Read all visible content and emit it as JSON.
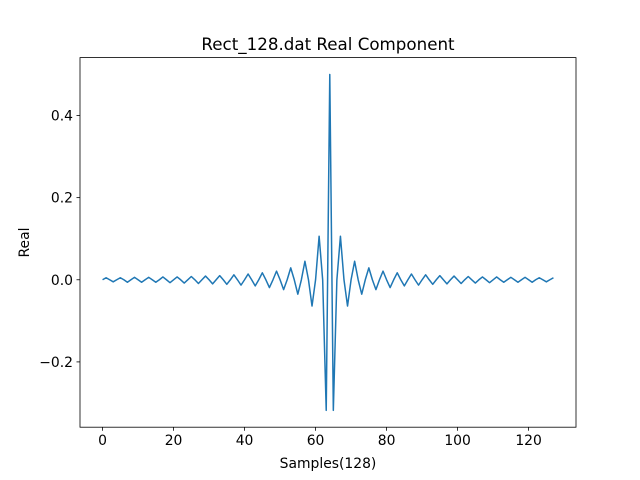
{
  "chart_data": {
    "type": "line",
    "title": "Rect_128.dat Real Component",
    "xlabel": "Samples(128)",
    "ylabel": "Real",
    "x": [
      0,
      1,
      2,
      3,
      4,
      5,
      6,
      7,
      8,
      9,
      10,
      11,
      12,
      13,
      14,
      15,
      16,
      17,
      18,
      19,
      20,
      21,
      22,
      23,
      24,
      25,
      26,
      27,
      28,
      29,
      30,
      31,
      32,
      33,
      34,
      35,
      36,
      37,
      38,
      39,
      40,
      41,
      42,
      43,
      44,
      45,
      46,
      47,
      48,
      49,
      50,
      51,
      52,
      53,
      54,
      55,
      56,
      57,
      58,
      59,
      60,
      61,
      62,
      63,
      64,
      65,
      66,
      67,
      68,
      69,
      70,
      71,
      72,
      73,
      74,
      75,
      76,
      77,
      78,
      79,
      80,
      81,
      82,
      83,
      84,
      85,
      86,
      87,
      88,
      89,
      90,
      91,
      92,
      93,
      94,
      95,
      96,
      97,
      98,
      99,
      100,
      101,
      102,
      103,
      104,
      105,
      106,
      107,
      108,
      109,
      110,
      111,
      112,
      113,
      114,
      115,
      116,
      117,
      118,
      119,
      120,
      121,
      122,
      123,
      124,
      125,
      126,
      127
    ],
    "values": [
      0,
      0.005,
      0,
      -0.005,
      0,
      0.005,
      0,
      -0.006,
      0,
      0.006,
      0,
      -0.006,
      0,
      0.006,
      0,
      -0.006,
      0,
      0.007,
      0,
      -0.007,
      0,
      0.007,
      0,
      -0.008,
      0,
      0.008,
      0,
      -0.009,
      0,
      0.009,
      0,
      -0.01,
      0,
      0.01,
      0,
      -0.011,
      0,
      0.012,
      0,
      -0.013,
      0,
      0.014,
      0,
      -0.015,
      0,
      0.017,
      0,
      -0.019,
      0,
      0.021,
      0,
      -0.024,
      0,
      0.029,
      0,
      -0.035,
      0,
      0.045,
      0,
      -0.064,
      0,
      0.106,
      0,
      -0.318,
      0.5,
      -0.318,
      0,
      0.106,
      0,
      -0.064,
      0,
      0.045,
      0,
      -0.035,
      0,
      0.029,
      0,
      -0.024,
      0,
      0.021,
      0,
      -0.019,
      0,
      0.017,
      0,
      -0.015,
      0,
      0.014,
      0,
      -0.013,
      0,
      0.012,
      0,
      -0.011,
      0,
      0.01,
      0,
      -0.01,
      0,
      0.009,
      0,
      -0.009,
      0,
      0.008,
      0,
      -0.008,
      0,
      0.007,
      0,
      -0.007,
      0,
      0.007,
      0,
      -0.006,
      0,
      0.006,
      0,
      -0.006,
      0,
      0.006,
      0,
      -0.006,
      0,
      0.005,
      0,
      -0.005,
      0,
      0.005
    ],
    "color": "#1f77b4",
    "xlim": [
      -6.35,
      133.35
    ],
    "xticks": [
      0,
      20,
      40,
      60,
      80,
      100,
      120
    ],
    "ylim": [
      -0.359,
      0.541
    ],
    "yticks": [
      {
        "value": -0.2,
        "label": "−0.2"
      },
      {
        "value": 0,
        "label": "0.0"
      },
      0.2,
      0.4
    ],
    "grid": false
  }
}
